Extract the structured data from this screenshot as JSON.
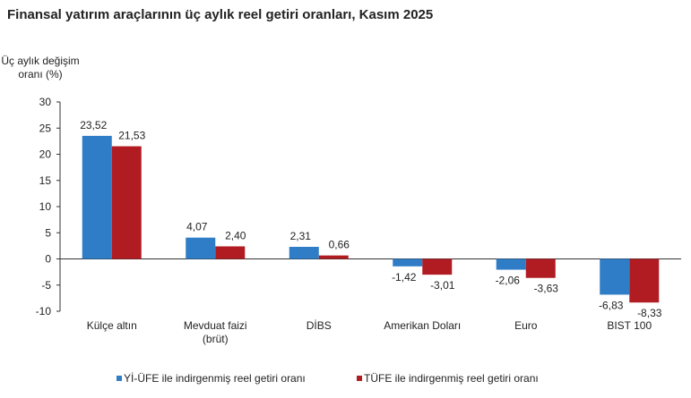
{
  "chart_data": {
    "type": "bar",
    "title": "Finansal yatırım araçlarının üç aylık reel getiri oranları, Kasım 2025",
    "ylabel_lines": [
      "Üç aylık değişim",
      "oranı (%)"
    ],
    "xlabel": "",
    "ylim": [
      -10,
      30
    ],
    "yticks": [
      30,
      25,
      20,
      15,
      10,
      5,
      0,
      -5,
      -10
    ],
    "categories": [
      [
        "Külçe altın"
      ],
      [
        "Mevduat faizi",
        "(brüt)"
      ],
      [
        "DİBS"
      ],
      [
        "Amerikan Doları"
      ],
      [
        "Euro"
      ],
      [
        "BIST 100"
      ]
    ],
    "series": [
      {
        "name": "Yİ-ÜFE ile indirgenmiş reel getiri oranı",
        "color": "#2E7DC6",
        "values": [
          23.52,
          4.07,
          2.31,
          -1.42,
          -2.06,
          -6.83
        ],
        "labels": [
          "23,52",
          "4,07",
          "2,31",
          "-1,42",
          "-2,06",
          "-6,83"
        ]
      },
      {
        "name": "TÜFE ile indirgenmiş reel getiri oranı",
        "color": "#B01C22",
        "values": [
          21.53,
          2.4,
          0.66,
          -3.01,
          -3.63,
          -8.33
        ],
        "labels": [
          "21,53",
          "2,40",
          "0,66",
          "-3,01",
          "-3,63",
          "-8,33"
        ]
      }
    ],
    "grid": false,
    "legend_position": "bottom"
  }
}
